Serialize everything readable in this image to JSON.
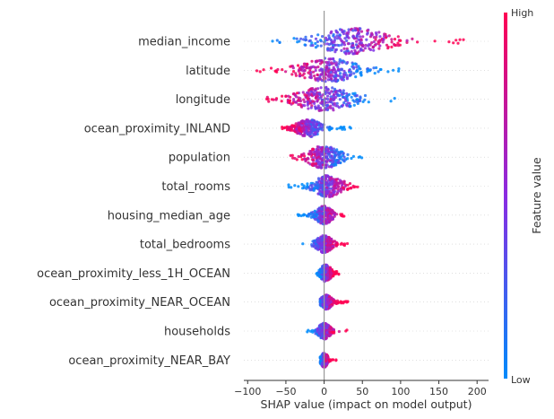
{
  "chart_data": {
    "type": "scatter",
    "subtype": "shap-beeswarm",
    "xlabel": "SHAP value (impact on model output)",
    "xlim": [
      -105,
      215
    ],
    "xticks": [
      -100,
      -50,
      0,
      50,
      100,
      150,
      200
    ],
    "colorbar": {
      "label": "Feature value",
      "high": "High",
      "low": "Low",
      "high_color": "#ff0052",
      "mid_color": "#8a2be2",
      "low_color": "#008bfb"
    },
    "features": [
      {
        "name": "median_income",
        "min": -68,
        "max": 205,
        "center": 38,
        "spread": 55,
        "hi_side": 1,
        "width": 0.45
      },
      {
        "name": "latitude",
        "min": -88,
        "max": 100,
        "center": 5,
        "spread": 45,
        "hi_side": -1,
        "width": 0.42
      },
      {
        "name": "longitude",
        "min": -92,
        "max": 105,
        "center": 0,
        "spread": 45,
        "hi_side": -1,
        "width": 0.42
      },
      {
        "name": "ocean_proximity_INLAND",
        "min": -55,
        "max": 35,
        "center": -20,
        "spread": 20,
        "hi_side": -1,
        "width": 0.3
      },
      {
        "name": "population",
        "min": -52,
        "max": 57,
        "center": 0,
        "spread": 25,
        "hi_side": -1,
        "width": 0.4
      },
      {
        "name": "total_rooms",
        "min": -48,
        "max": 45,
        "center": 5,
        "spread": 22,
        "hi_side": 1,
        "width": 0.38
      },
      {
        "name": "housing_median_age",
        "min": -35,
        "max": 33,
        "center": 0,
        "spread": 12,
        "hi_side": 1,
        "width": 0.32
      },
      {
        "name": "total_bedrooms",
        "min": -30,
        "max": 32,
        "center": 0,
        "spread": 12,
        "hi_side": 1,
        "width": 0.3
      },
      {
        "name": "ocean_proximity_less_1H_OCEAN",
        "min": -10,
        "max": 20,
        "center": 2,
        "spread": 8,
        "hi_side": 1,
        "width": 0.3
      },
      {
        "name": "ocean_proximity_NEAR_OCEAN",
        "min": -5,
        "max": 32,
        "center": 3,
        "spread": 8,
        "hi_side": 1,
        "width": 0.25
      },
      {
        "name": "households",
        "min": -30,
        "max": 30,
        "center": 0,
        "spread": 9,
        "hi_side": 1,
        "width": 0.28
      },
      {
        "name": "ocean_proximity_NEAR_BAY",
        "min": -5,
        "max": 17,
        "center": 0,
        "spread": 5,
        "hi_side": 1,
        "width": 0.25
      }
    ]
  }
}
